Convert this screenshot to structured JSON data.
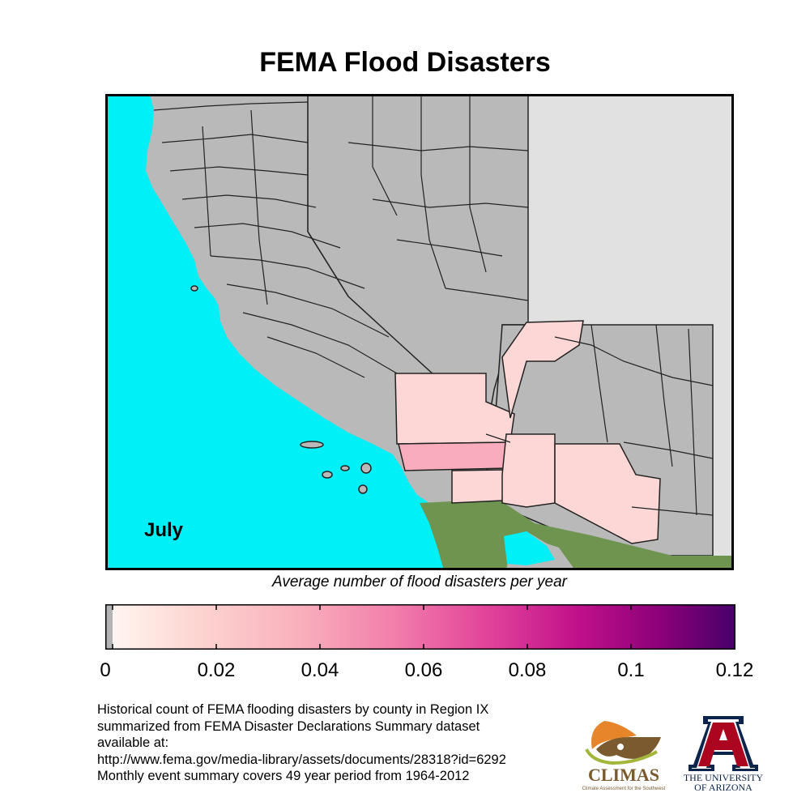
{
  "title": "FEMA Flood Disasters",
  "month_label": "July",
  "caption": "Average number of flood disasters per year",
  "colorbar": {
    "min": 0,
    "max": 0.12,
    "no_data_color": "#b4b4b4",
    "colors": [
      "#fff5f0",
      "#fcd4d0",
      "#f9b0bc",
      "#f27fab",
      "#e2449a",
      "#c0108a",
      "#8c017a",
      "#48006a"
    ],
    "ticks": [
      "0",
      "0.02",
      "0.04",
      "0.06",
      "0.08",
      "0.1",
      "0.12"
    ]
  },
  "map_colors": {
    "ocean": "#00f0f8",
    "no_data": "#b9b9b9",
    "outside_region": "#e1e1e1",
    "mexico": "#6e9450",
    "low": "#fcd7d5",
    "medium": "#f9adbc"
  },
  "notes": [
    "Historical count of FEMA flooding disasters by county in Region IX",
    "summarized from FEMA Disaster Declarations Summary dataset",
    "available at:",
    "http://www.fema.gov/media-library/assets/documents/28318?id=6292",
    "Monthly event summary covers 49 year period from 1964-2012"
  ],
  "logos": {
    "climas": {
      "name": "CLIMAS",
      "tagline": "Climate Assessment for the Southwest"
    },
    "ua": {
      "name_line1": "THE UNIVERSITY",
      "name_line2": "OF ARIZONA"
    }
  }
}
